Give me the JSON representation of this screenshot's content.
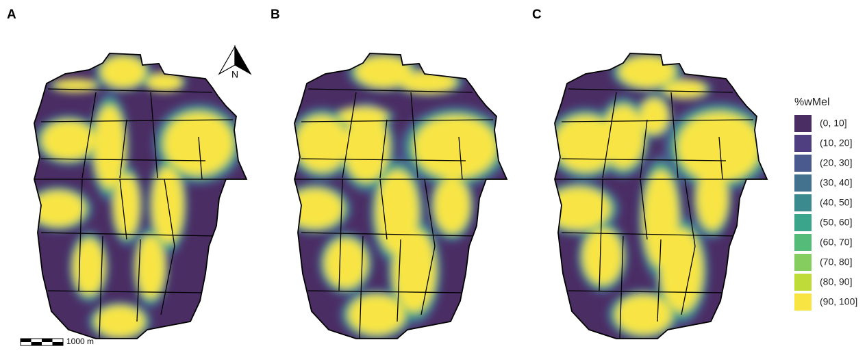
{
  "panels": [
    {
      "label": "A"
    },
    {
      "label": "B"
    },
    {
      "label": "C"
    }
  ],
  "north_arrow": "N",
  "scale_bar": "1000 m",
  "legend": {
    "title": "%wMel",
    "items": [
      {
        "label": "(0, 10]",
        "color": "#4a2d63"
      },
      {
        "label": "(10, 20]",
        "color": "#4f3f80"
      },
      {
        "label": "(20, 30]",
        "color": "#4b5a8e"
      },
      {
        "label": "(30, 40]",
        "color": "#43728f"
      },
      {
        "label": "(40, 50]",
        "color": "#3b8a8e"
      },
      {
        "label": "(50, 60]",
        "color": "#3aa58a"
      },
      {
        "label": "(60, 70]",
        "color": "#55bb78"
      },
      {
        "label": "(70, 80]",
        "color": "#85cd5e"
      },
      {
        "label": "(80, 90]",
        "color": "#bedb3a"
      },
      {
        "label": "(90, 100]",
        "color": "#f8e544"
      }
    ]
  }
}
